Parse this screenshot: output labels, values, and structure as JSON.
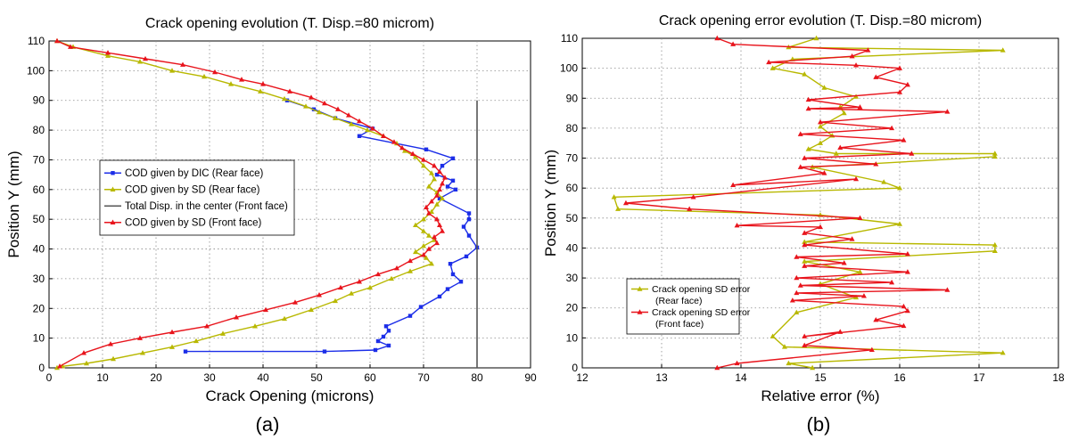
{
  "panels": [
    {
      "caption": "(a)"
    },
    {
      "caption": "(b)"
    }
  ],
  "chart_data": [
    {
      "type": "line",
      "title": "Crack opening evolution (T. Disp.=80 microm)",
      "xlabel": "Crack Opening (microns)",
      "ylabel": "Position Y (mm)",
      "xlim": [
        0,
        90
      ],
      "ylim": [
        0,
        110
      ],
      "xticks": [
        0,
        10,
        20,
        30,
        40,
        50,
        60,
        70,
        80,
        90
      ],
      "yticks": [
        0,
        10,
        20,
        30,
        40,
        50,
        60,
        70,
        80,
        90,
        100,
        110
      ],
      "grid": true,
      "legend_position": "center-left",
      "series": [
        {
          "name": "COD given by DIC (Rear face)",
          "color": "#1c2ee8",
          "marker": "square",
          "x": [
            44.5,
            49.5,
            53.5,
            60.5,
            58,
            70.5,
            75.5,
            73.5,
            72.5,
            75.5,
            74.5,
            76,
            73,
            78.5,
            78.5,
            77.5,
            78.5,
            80,
            78,
            75,
            75.5,
            77,
            74.5,
            73,
            69.5,
            67.5,
            63,
            63.5,
            62.5,
            61.5,
            63.5,
            61,
            51.5,
            25.5
          ],
          "y": [
            90,
            87,
            84,
            80.5,
            78,
            73.5,
            70.5,
            68,
            65,
            63,
            61,
            60,
            57,
            52,
            50,
            47.5,
            44.5,
            40.5,
            37.5,
            35,
            31.5,
            29,
            26.5,
            24,
            20.5,
            17.5,
            14,
            12.5,
            10.5,
            9,
            7.5,
            6,
            5.5,
            5.5
          ]
        },
        {
          "name": "COD given by SD (Rear face)",
          "color": "#b8b800",
          "marker": "triangle",
          "x": [
            1.5,
            4.5,
            11,
            17,
            23,
            29,
            34,
            39.5,
            44,
            48,
            50.5,
            53.5,
            56.5,
            59.5,
            62.5,
            65,
            66.5,
            68.5,
            70,
            71.5,
            72,
            71,
            72.5,
            73.5,
            72.5,
            71.5,
            70,
            68.5,
            70,
            71,
            72,
            70,
            68.5,
            70.5,
            71.5,
            67.5,
            64,
            60,
            56.5,
            53.5,
            49,
            44,
            38.5,
            32.5,
            27.5,
            23,
            17.5,
            12,
            7,
            2.5,
            1.5
          ],
          "y": [
            110,
            108,
            105,
            103,
            100,
            98,
            95.5,
            93,
            90.5,
            88,
            86,
            84,
            82,
            80,
            78,
            75.5,
            73,
            71,
            68,
            65.5,
            63.5,
            61,
            59,
            57,
            55,
            52.5,
            50,
            48,
            46,
            44.5,
            43,
            41,
            39,
            37,
            35,
            32.5,
            30,
            27,
            25,
            22.5,
            19.5,
            16.5,
            14,
            11.5,
            9,
            7,
            5,
            3,
            1.5,
            0.5,
            0
          ]
        },
        {
          "name": "Total Disp. in the center (Front face)",
          "color": "#555555",
          "marker": "none",
          "x": [
            80,
            80
          ],
          "y": [
            0,
            90
          ]
        },
        {
          "name": "COD given by SD (Front face)",
          "color": "#e8141c",
          "marker": "triangle",
          "x": [
            1.5,
            4,
            11,
            18,
            25,
            31,
            36,
            40,
            45,
            49,
            51.5,
            54,
            56,
            58,
            60.5,
            62.5,
            64.5,
            66,
            68,
            70,
            72,
            73,
            74,
            73.5,
            73,
            72.5,
            71.5,
            70.5,
            71,
            72.5,
            73,
            73.5,
            72,
            72.5,
            71,
            70,
            67.5,
            65,
            61.5,
            58,
            54.5,
            50.5,
            46,
            40.5,
            35,
            29.5,
            23,
            17,
            11.5,
            6.5,
            2
          ],
          "y": [
            110,
            108,
            106,
            104,
            102,
            99.5,
            97,
            95.5,
            93,
            91,
            89,
            87,
            85,
            83,
            80.5,
            78,
            76,
            74,
            72,
            70,
            68,
            66,
            64,
            62,
            60,
            58,
            56,
            54,
            52,
            50,
            48,
            46,
            44,
            42,
            40,
            38,
            36,
            33.5,
            31.5,
            29,
            27,
            24.5,
            22,
            19.5,
            17,
            14,
            12,
            10,
            8,
            5,
            0.5
          ]
        }
      ]
    },
    {
      "type": "line",
      "title": "Crack opening error evolution (T. Disp.=80 microm)",
      "xlabel": "Relative error (%)",
      "ylabel": "Position Y (mm)",
      "xlim": [
        12,
        18
      ],
      "ylim": [
        0,
        110
      ],
      "xticks": [
        12,
        13,
        14,
        15,
        16,
        17,
        18
      ],
      "yticks": [
        0,
        10,
        20,
        30,
        40,
        50,
        60,
        70,
        80,
        90,
        100,
        110
      ],
      "grid": true,
      "legend_position": "bottom-left",
      "series": [
        {
          "name": "Crack opening SD error\n(Rear face)",
          "color": "#b8b800",
          "marker": "triangle",
          "x": [
            14.95,
            14.6,
            17.3,
            14.65,
            14.4,
            14.8,
            15.05,
            15.45,
            15.25,
            15.3,
            15.0,
            15.15,
            15.0,
            14.85,
            15.2,
            17.2,
            17.2,
            14.9,
            15.8,
            16.0,
            12.4,
            12.45,
            15.0,
            16.0,
            14.8,
            17.2,
            17.2,
            14.8,
            15.5,
            15.0,
            15.45,
            14.7,
            14.4,
            14.55,
            17.3,
            14.6,
            14.9
          ],
          "y": [
            110,
            107,
            106,
            103,
            100,
            98,
            93.5,
            90.5,
            87,
            85,
            80.5,
            77.5,
            75,
            73,
            71.5,
            71.5,
            70.5,
            67,
            62,
            60,
            57,
            53,
            51,
            48,
            42,
            41,
            39,
            35.5,
            32,
            28,
            23.5,
            18.5,
            10.5,
            7,
            5,
            1.5,
            0
          ]
        },
        {
          "name": "Crack opening SD error\n(Front face)",
          "color": "#e8141c",
          "marker": "triangle",
          "x": [
            13.7,
            13.9,
            15.6,
            15.4,
            14.35,
            15.45,
            16.0,
            15.7,
            16.1,
            16.0,
            14.85,
            15.5,
            14.85,
            16.6,
            15.0,
            15.9,
            14.75,
            16.05,
            15.25,
            16.15,
            14.8,
            15.7,
            14.75,
            15.05,
            13.9,
            15.45,
            13.4,
            12.55,
            13.35,
            15.5,
            13.95,
            15.0,
            14.8,
            15.4,
            14.8,
            16.1,
            14.7,
            15.3,
            14.8,
            16.1,
            14.7,
            15.9,
            14.75,
            16.6,
            14.7,
            15.55,
            14.65,
            16.05,
            16.1,
            15.7,
            16.05,
            14.8,
            15.25,
            14.8,
            15.65,
            13.95,
            13.7
          ],
          "y": [
            110,
            108,
            106,
            104,
            102,
            101,
            100,
            97,
            94.5,
            92,
            89.5,
            87,
            86.5,
            85.5,
            82,
            80,
            78,
            76,
            73.5,
            71.5,
            70,
            68,
            67,
            65,
            61,
            63,
            57,
            55,
            53,
            50,
            47.5,
            47,
            45,
            43,
            41,
            38,
            37,
            35,
            34,
            32,
            30,
            28.5,
            27.5,
            26,
            25,
            24,
            22.5,
            20.5,
            19,
            16,
            14,
            10.5,
            12,
            7.5,
            6,
            1.5,
            0
          ]
        }
      ]
    }
  ]
}
